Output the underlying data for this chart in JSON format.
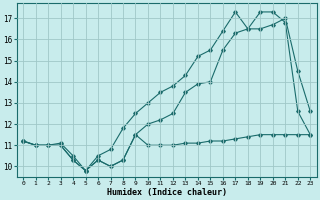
{
  "title": "",
  "xlabel": "Humidex (Indice chaleur)",
  "bg_color": "#c8ecec",
  "grid_color": "#a0c8c8",
  "line_color": "#1a6b6b",
  "xlim": [
    -0.5,
    23.5
  ],
  "ylim": [
    9.5,
    17.7
  ],
  "yticks": [
    10,
    11,
    12,
    13,
    14,
    15,
    16,
    17
  ],
  "xticks": [
    0,
    1,
    2,
    3,
    4,
    5,
    6,
    7,
    8,
    9,
    10,
    11,
    12,
    13,
    14,
    15,
    16,
    17,
    18,
    19,
    20,
    21,
    22,
    23
  ],
  "line1_x": [
    0,
    1,
    2,
    3,
    4,
    5,
    6,
    7,
    8,
    9,
    10,
    11,
    12,
    13,
    14,
    15,
    16,
    17,
    18,
    19,
    20,
    21,
    22,
    23
  ],
  "line1_y": [
    11.2,
    11.0,
    11.0,
    11.0,
    10.3,
    9.8,
    10.3,
    10.0,
    10.3,
    11.5,
    11.0,
    11.0,
    11.0,
    11.1,
    11.1,
    11.2,
    11.2,
    11.3,
    11.4,
    11.5,
    11.5,
    11.5,
    11.5,
    11.5
  ],
  "line2_x": [
    0,
    1,
    2,
    3,
    4,
    5,
    6,
    7,
    8,
    9,
    10,
    11,
    12,
    13,
    14,
    15,
    16,
    17,
    18,
    19,
    20,
    21,
    22,
    23
  ],
  "line2_y": [
    11.2,
    11.0,
    11.0,
    11.1,
    10.5,
    9.8,
    10.5,
    10.8,
    11.8,
    12.5,
    13.0,
    13.5,
    13.8,
    14.3,
    15.2,
    15.5,
    16.4,
    17.3,
    16.5,
    17.3,
    17.3,
    16.8,
    12.6,
    11.5
  ],
  "line3_x": [
    0,
    1,
    2,
    3,
    4,
    5,
    6,
    7,
    8,
    9,
    10,
    11,
    12,
    13,
    14,
    15,
    16,
    17,
    18,
    19,
    20,
    21,
    22,
    23
  ],
  "line3_y": [
    11.2,
    11.0,
    11.0,
    11.0,
    10.3,
    9.8,
    10.3,
    10.0,
    10.3,
    11.5,
    12.0,
    12.2,
    12.5,
    13.5,
    13.9,
    14.0,
    15.5,
    16.3,
    16.5,
    16.5,
    16.7,
    17.0,
    14.5,
    12.6
  ]
}
